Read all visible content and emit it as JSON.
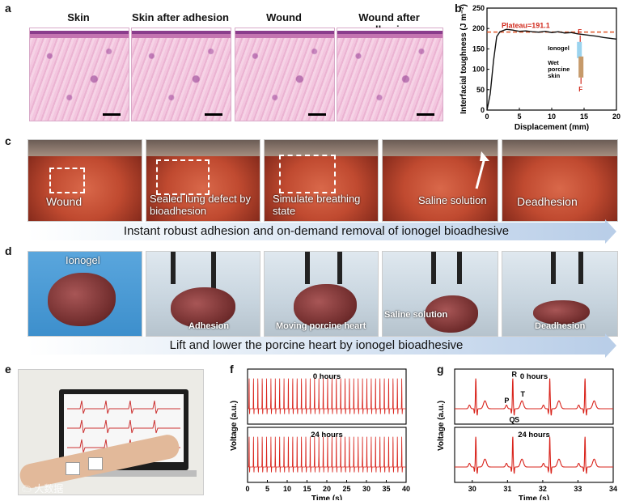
{
  "panel_a": {
    "label": "a",
    "titles": [
      "Skin",
      "Skin after adhesion",
      "Wound",
      "Wound after adhesion"
    ]
  },
  "panel_b": {
    "label": "b",
    "legend_ionogel": "Ionogel",
    "legend_skin": "Wet\nporcine\nskin",
    "force_label": "F"
  },
  "panel_c": {
    "label": "c",
    "captions": [
      "Wound",
      "Sealed lung defect by\nbioadhesion",
      "Simulate breathing\nstate",
      "Saline solution",
      "Deadhesion"
    ],
    "banner": "Instant robust adhesion and on-demand removal of ionogel bioadhesive"
  },
  "panel_d": {
    "label": "d",
    "captions": [
      "Ionogel",
      "Adhesion",
      "Moving porcine heart",
      "Saline solution",
      "Deadhesion"
    ],
    "banner": "Lift and lower the porcine heart by ionogel bioadhesive"
  },
  "panel_e": {
    "label": "e",
    "watermark": "大数据"
  },
  "panel_f": {
    "label": "f",
    "top_title": "0 hours",
    "bottom_title": "24 hours"
  },
  "panel_g": {
    "label": "g",
    "top_title": "0 hours",
    "bottom_title": "24 hours",
    "wave_labels": [
      "R",
      "P",
      "T",
      "Q",
      "S"
    ]
  },
  "chart_data": [
    {
      "panel": "b",
      "type": "line",
      "xlabel": "Displacement (mm)",
      "ylabel": "Interfacial toughness (J m⁻²)",
      "xlim": [
        0,
        20
      ],
      "ylim": [
        0,
        250
      ],
      "x_ticks": [
        0,
        5,
        10,
        15,
        20
      ],
      "y_ticks": [
        0,
        50,
        100,
        150,
        200,
        250
      ],
      "annotation": "Plateau=191.1",
      "plateau": 191.1,
      "series": [
        {
          "x": [
            0,
            0.5,
            1,
            1.5,
            2,
            3,
            4,
            5,
            6,
            7,
            8,
            9,
            10,
            11,
            12,
            13,
            14,
            15,
            16,
            17,
            18,
            19,
            20
          ],
          "values": [
            0,
            40,
            120,
            180,
            192,
            198,
            196,
            193,
            194,
            192,
            191,
            193,
            190,
            192,
            189,
            190,
            187,
            185,
            183,
            181,
            178,
            176,
            174
          ]
        }
      ],
      "colors": {
        "curve": "#111111",
        "plateau": "#e0572b"
      }
    },
    {
      "panel": "f",
      "type": "line",
      "xlabel": "Time (s)",
      "ylabel": "Voltage (a.u.)",
      "xlim": [
        0,
        40
      ],
      "x_ticks": [
        0,
        5,
        10,
        15,
        20,
        25,
        30,
        35,
        40
      ],
      "series_titles": [
        "0 hours",
        "24 hours"
      ],
      "beat_interval_s": 1.1,
      "colors": {
        "trace": "#d9241c"
      }
    },
    {
      "panel": "g",
      "type": "line",
      "xlabel": "Time (s)",
      "ylabel": "Voltage (a.u.)",
      "xlim": [
        29.5,
        34
      ],
      "x_ticks": [
        30,
        31,
        32,
        33,
        34
      ],
      "series_titles": [
        "0 hours",
        "24 hours"
      ],
      "r_peaks_s": [
        30.1,
        31.15,
        32.2,
        33.2
      ],
      "colors": {
        "trace": "#d9241c"
      }
    }
  ]
}
